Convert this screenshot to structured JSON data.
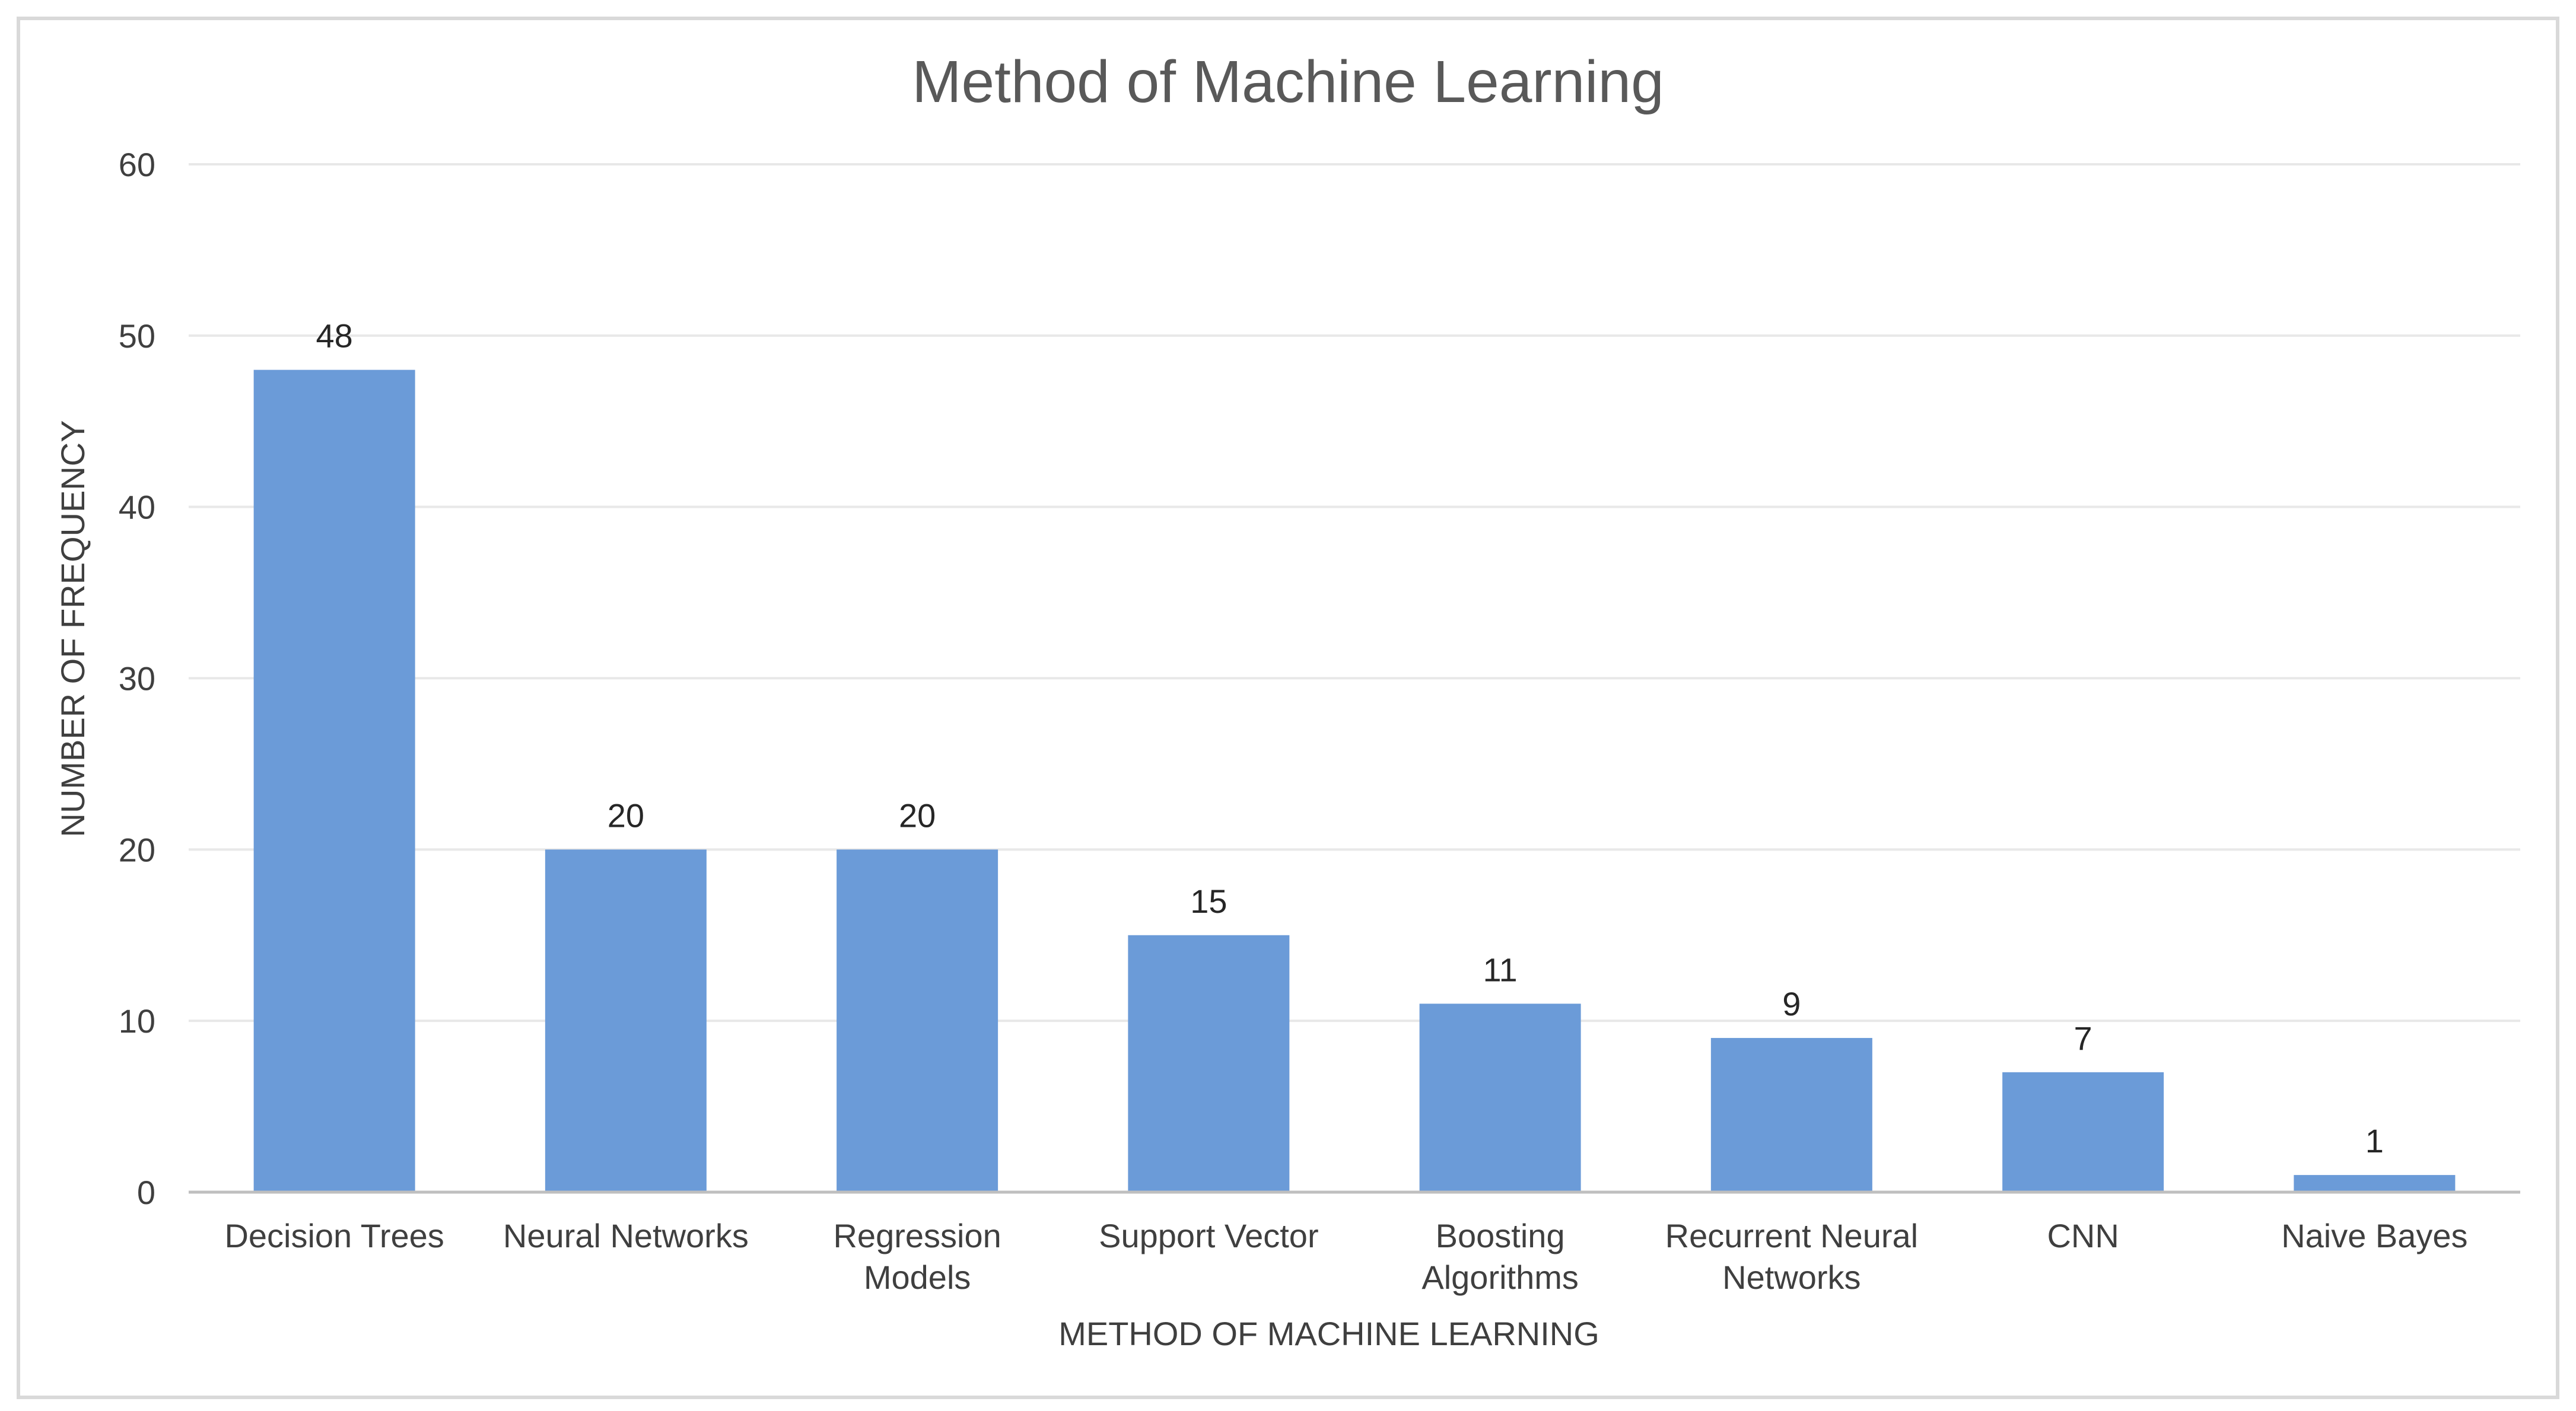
{
  "chart_data": {
    "type": "bar",
    "title": "Method of Machine Learning",
    "xlabel": "METHOD OF MACHINE LEARNING",
    "ylabel": "NUMBER OF FREQUENCY",
    "categories": [
      [
        "Decision Trees"
      ],
      [
        "Neural Networks"
      ],
      [
        "Regression",
        "Models"
      ],
      [
        "Support Vector"
      ],
      [
        "Boosting",
        "Algorithms"
      ],
      [
        "Recurrent Neural",
        "Networks"
      ],
      [
        "CNN"
      ],
      [
        "Naive Bayes"
      ]
    ],
    "values": [
      48,
      20,
      20,
      15,
      11,
      9,
      7,
      1
    ],
    "ylim": [
      0,
      60
    ],
    "yticks": [
      0,
      10,
      20,
      30,
      40,
      50,
      60
    ],
    "grid": true,
    "legend": "none",
    "data_labels": true,
    "colors": {
      "bar": "#6b9bd8",
      "grid": "#e8e8e8",
      "axis": "#bfbfbf",
      "frame": "#d9d9d9"
    }
  }
}
